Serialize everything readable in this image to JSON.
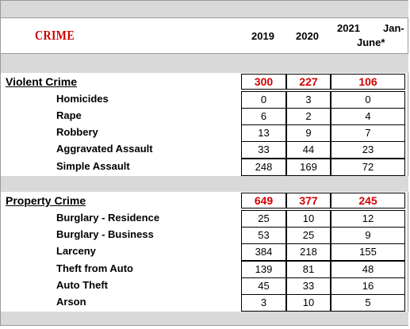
{
  "header": {
    "title": "CRIME",
    "years": [
      "2019",
      "2020",
      "2021"
    ],
    "partial_label_top": "Jan-",
    "partial_label_bottom": "June*"
  },
  "violent": {
    "title": "Violent Crime",
    "totals": [
      "300",
      "227",
      "106"
    ],
    "rows": [
      {
        "label": "Homicides",
        "values": [
          "0",
          "3",
          "0"
        ]
      },
      {
        "label": "Rape",
        "values": [
          "6",
          "2",
          "4"
        ]
      },
      {
        "label": "Robbery",
        "values": [
          "13",
          "9",
          "7"
        ]
      },
      {
        "label": "Aggravated Assault",
        "values": [
          "33",
          "44",
          "23"
        ]
      },
      {
        "label": "Simple Assault",
        "values": [
          "248",
          "169",
          "72"
        ]
      }
    ]
  },
  "property": {
    "title": "Property Crime",
    "totals": [
      "649",
      "377",
      "245"
    ],
    "rows": [
      {
        "label": "Burglary - Residence",
        "values": [
          "25",
          "10",
          "12"
        ]
      },
      {
        "label": "Burglary - Business",
        "values": [
          "53",
          "25",
          "9"
        ]
      },
      {
        "label": "Larceny",
        "values": [
          "384",
          "218",
          "155"
        ]
      },
      {
        "label": "Theft from Auto",
        "values": [
          "139",
          "81",
          "48"
        ]
      },
      {
        "label": "Auto Theft",
        "values": [
          "45",
          "33",
          "16"
        ]
      },
      {
        "label": "Arson",
        "values": [
          "3",
          "10",
          "5"
        ]
      }
    ]
  },
  "colors": {
    "accent": "#cc0000",
    "band": "#d9d9d9"
  }
}
